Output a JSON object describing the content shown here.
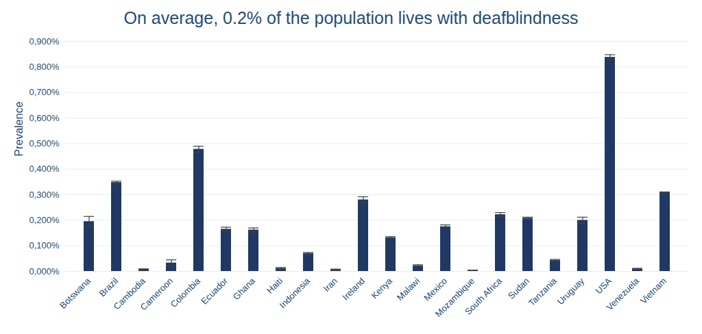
{
  "chart_data": {
    "type": "bar",
    "title": "On average, 0.2% of the population lives with deafblindness",
    "y_label": "Prevalence",
    "categories": [
      "Botswana",
      "Brazil",
      "Cambodia",
      "Cameroon",
      "Colombia",
      "Ecuador",
      "Ghana",
      "Haiti",
      "Indonesia",
      "Iran",
      "Ireland",
      "Kenya",
      "Malawi",
      "Mexico",
      "Mozambique",
      "South Africa",
      "Sudan",
      "Tanzania",
      "Uruguay",
      "USA",
      "Venezuela",
      "Vietnam"
    ],
    "values": [
      0.195,
      0.348,
      0.008,
      0.033,
      0.478,
      0.165,
      0.162,
      0.012,
      0.07,
      0.007,
      0.28,
      0.132,
      0.022,
      0.175,
      0.004,
      0.222,
      0.208,
      0.043,
      0.2,
      0.838,
      0.01,
      0.308
    ],
    "errors": [
      0.02,
      0.005,
      0.002,
      0.012,
      0.012,
      0.008,
      0.008,
      0.003,
      0.004,
      0.002,
      0.012,
      0.004,
      0.004,
      0.007,
      0.001,
      0.008,
      0.004,
      0.004,
      0.012,
      0.01,
      0.002,
      0.003
    ],
    "color": "#1f3864",
    "ylim": [
      0,
      0.9
    ],
    "yticks": [
      {
        "value": 0,
        "label": "0,000%"
      },
      {
        "value": 0.1,
        "label": "0,100%"
      },
      {
        "value": 0.2,
        "label": "0,200%"
      },
      {
        "value": 0.3,
        "label": "0,300%"
      },
      {
        "value": 0.4,
        "label": "0,400%"
      },
      {
        "value": 0.5,
        "label": "0,500%"
      },
      {
        "value": 0.6,
        "label": "0,600%"
      },
      {
        "value": 0.7,
        "label": "0,700%"
      },
      {
        "value": 0.8,
        "label": "0,800%"
      },
      {
        "value": 0.9,
        "label": "0,900%"
      }
    ],
    "grid": true,
    "data_labels": false
  }
}
